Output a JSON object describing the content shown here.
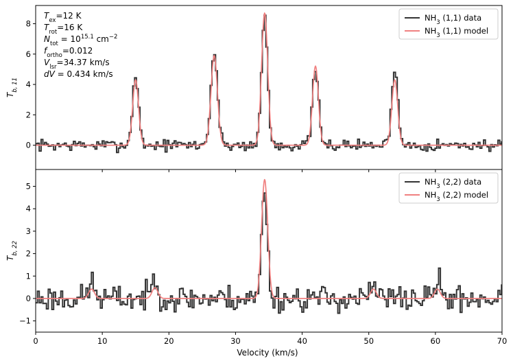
{
  "figure": {
    "xlabel": "Velocity (km/s)",
    "colors": {
      "data": "#333333",
      "model": "#f08080"
    }
  },
  "chart_data": [
    {
      "type": "line",
      "panel": "top",
      "ylabel": "T",
      "ylabel_sub": "b, 11",
      "xlim": [
        0,
        70
      ],
      "ylim": [
        -1.6,
        9.2
      ],
      "x_ticks": [
        0,
        10,
        20,
        30,
        40,
        50,
        60,
        70
      ],
      "y_ticks": [
        0,
        2,
        4,
        6,
        8
      ],
      "grid": false,
      "legend_position": "top-right",
      "series": [
        {
          "name": "NH3 (1,1) data",
          "name_base": "NH",
          "name_sub": "3",
          "name_rest": " (1,1) data",
          "style": "step",
          "noise_seed": 7,
          "noise_amp": 0.27,
          "components": [
            {
              "center": 15.0,
              "amp": 4.6,
              "sigma": 0.45
            },
            {
              "center": 26.8,
              "amp": 6.1,
              "sigma": 0.5
            },
            {
              "center": 34.37,
              "amp": 8.5,
              "sigma": 0.45
            },
            {
              "center": 42.0,
              "amp": 5.0,
              "sigma": 0.45
            },
            {
              "center": 53.9,
              "amp": 5.2,
              "sigma": 0.45
            }
          ]
        },
        {
          "name": "NH3 (1,1) model",
          "name_base": "NH",
          "name_sub": "3",
          "name_rest": " (1,1) model",
          "style": "smooth",
          "components": [
            {
              "center": 15.0,
              "amp": 4.3,
              "sigma": 0.44
            },
            {
              "center": 26.8,
              "amp": 5.9,
              "sigma": 0.48
            },
            {
              "center": 34.37,
              "amp": 8.7,
              "sigma": 0.46
            },
            {
              "center": 42.0,
              "amp": 5.2,
              "sigma": 0.44
            },
            {
              "center": 53.9,
              "amp": 4.3,
              "sigma": 0.44
            }
          ]
        }
      ],
      "annotations": [
        {
          "base": "T",
          "sub": "ex",
          "rest": "=12 K"
        },
        {
          "base": "T",
          "sub": "rot",
          "rest": "=16 K"
        },
        {
          "base": "N",
          "sub": "tot",
          "rest": " = 10",
          "sup": "15.1",
          "rest2": " cm",
          "sup2": "−2"
        },
        {
          "base": "f",
          "sub": "ortho",
          "rest": "=0.012"
        },
        {
          "base": "V",
          "sub": "lsr",
          "rest": "=34.37 km/s"
        },
        {
          "base": "dV",
          "sub": "",
          "rest": " = 0.434 km/s"
        }
      ]
    },
    {
      "type": "line",
      "panel": "bottom",
      "ylabel": "T",
      "ylabel_sub": "b, 22",
      "xlim": [
        0,
        70
      ],
      "ylim": [
        -1.5,
        5.75
      ],
      "x_ticks": [
        0,
        10,
        20,
        30,
        40,
        50,
        60,
        70
      ],
      "y_ticks": [
        -1,
        0,
        1,
        2,
        3,
        4,
        5
      ],
      "grid": false,
      "legend_position": "top-right",
      "series": [
        {
          "name": "NH3 (2,2) data",
          "name_base": "NH",
          "name_sub": "3",
          "name_rest": " (2,2) data",
          "style": "step",
          "noise_seed": 23,
          "noise_amp": 0.42,
          "components": [
            {
              "center": 8.4,
              "amp": 0.7,
              "sigma": 0.45
            },
            {
              "center": 17.9,
              "amp": 0.9,
              "sigma": 0.5
            },
            {
              "center": 34.37,
              "amp": 4.95,
              "sigma": 0.42
            },
            {
              "center": 50.7,
              "amp": 0.45,
              "sigma": 0.5
            },
            {
              "center": 60.3,
              "amp": 0.8,
              "sigma": 0.45
            }
          ]
        },
        {
          "name": "NH3 (2,2) model",
          "name_base": "NH",
          "name_sub": "3",
          "name_rest": " (2,2) model",
          "style": "smooth",
          "components": [
            {
              "center": 8.4,
              "amp": 0.42,
              "sigma": 0.44
            },
            {
              "center": 17.9,
              "amp": 0.48,
              "sigma": 0.44
            },
            {
              "center": 34.37,
              "amp": 5.3,
              "sigma": 0.46
            },
            {
              "center": 50.7,
              "amp": 0.42,
              "sigma": 0.44
            },
            {
              "center": 60.3,
              "amp": 0.42,
              "sigma": 0.44
            }
          ]
        }
      ]
    }
  ]
}
